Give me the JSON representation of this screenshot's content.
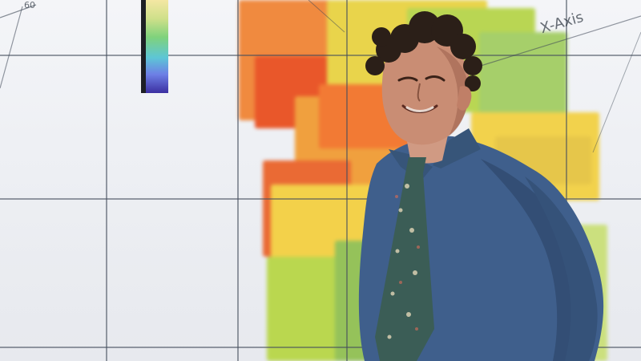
{
  "scene": {
    "description_visible_text": {
      "axis_label": "X-Axis",
      "corner_tick": "60"
    }
  },
  "colors": {
    "wall_background": "#eef0f4",
    "seam": "#464e5c",
    "viz_orange": "#f07a3a",
    "viz_yellow": "#f2d64a",
    "viz_green": "#b6dc52",
    "shirt_blue": "#3f5f8c",
    "tie_green": "#3b5d56"
  },
  "icons": [
    "colorbar-legend"
  ]
}
